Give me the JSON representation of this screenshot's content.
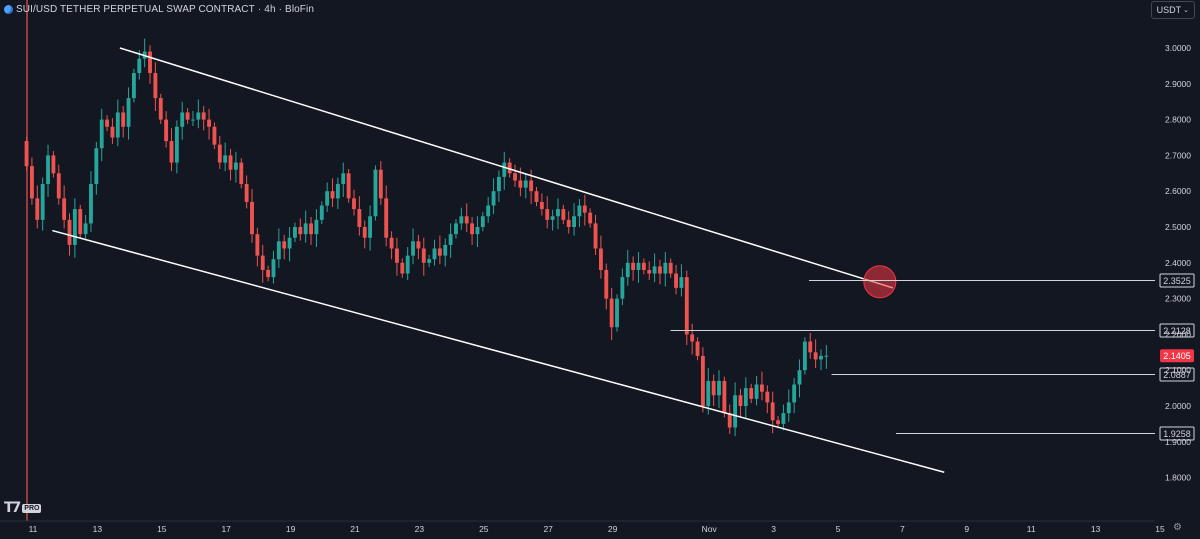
{
  "header": {
    "symbol": "SUI/USD TETHER PERPETUAL SWAP CONTRACT",
    "interval": "4h",
    "exchange": "BloFin",
    "separator": "·"
  },
  "currency_button": {
    "label": "USDT",
    "chevron": "⌄"
  },
  "logo": {
    "badge": "PRO"
  },
  "colors": {
    "background": "#131722",
    "up": "#26a69a",
    "down": "#ef5350",
    "channel": "#ffffff",
    "price_label_bg": "#f23645",
    "axis_text": "#d1d4dc"
  },
  "chart_data": {
    "type": "candlestick",
    "symbol": "SUI/USD TETHER PERPETUAL SWAP CONTRACT",
    "interval": "4h",
    "x_ticks": [
      "11",
      "13",
      "15",
      "17",
      "19",
      "21",
      "23",
      "25",
      "27",
      "29",
      "Nov",
      "3",
      "5",
      "7",
      "9",
      "11",
      "13",
      "15"
    ],
    "y_ticks": [
      "3.0000",
      "2.9000",
      "2.8000",
      "2.7000",
      "2.6000",
      "2.5000",
      "2.4000",
      "2.3000",
      "2.2000",
      "2.1000",
      "2.0000",
      "1.9000",
      "1.8000"
    ],
    "ylim": [
      1.75,
      3.08
    ],
    "xlim": [
      "Oct 11",
      "Nov 16"
    ],
    "current_price": 2.1405,
    "levels": [
      {
        "label": "2.3525",
        "value": 2.3525,
        "from_day": 35.1
      },
      {
        "label": "2.2128",
        "value": 2.2128,
        "from_day": 30.8
      },
      {
        "label": "2.0887",
        "value": 2.0887,
        "from_day": 35.8
      },
      {
        "label": "1.9258",
        "value": 1.9258,
        "from_day": 37.8
      }
    ],
    "channel": {
      "upper": [
        [
          13.7,
          3.0
        ],
        [
          37.7,
          2.33
        ]
      ],
      "lower": [
        [
          11.6,
          2.49
        ],
        [
          39.3,
          1.815
        ]
      ]
    },
    "breakout_marker": {
      "day": 37.3,
      "value": 2.347
    },
    "grid": false,
    "legend": "none",
    "series": [
      {
        "x_start_day": 10.8,
        "bar_days": 0.1667,
        "closes": [
          2.67,
          2.58,
          2.52,
          2.62,
          2.7,
          2.65,
          2.58,
          2.52,
          2.45,
          2.55,
          2.48,
          2.51,
          2.62,
          2.72,
          2.8,
          2.78,
          2.75,
          2.82,
          2.78,
          2.86,
          2.93,
          2.97,
          2.99,
          2.93,
          2.86,
          2.8,
          2.74,
          2.68,
          2.78,
          2.82,
          2.8,
          2.8,
          2.82,
          2.8,
          2.78,
          2.73,
          2.68,
          2.7,
          2.66,
          2.68,
          2.62,
          2.57,
          2.48,
          2.42,
          2.38,
          2.36,
          2.41,
          2.46,
          2.44,
          2.47,
          2.5,
          2.48,
          2.51,
          2.48,
          2.52,
          2.56,
          2.6,
          2.58,
          2.62,
          2.65,
          2.58,
          2.55,
          2.5,
          2.47,
          2.53,
          2.66,
          2.58,
          2.47,
          2.44,
          2.4,
          2.37,
          2.42,
          2.46,
          2.44,
          2.4,
          2.41,
          2.44,
          2.42,
          2.45,
          2.48,
          2.51,
          2.53,
          2.51,
          2.48,
          2.5,
          2.53,
          2.56,
          2.6,
          2.64,
          2.68,
          2.65,
          2.63,
          2.61,
          2.63,
          2.6,
          2.57,
          2.55,
          2.52,
          2.53,
          2.55,
          2.52,
          2.5,
          2.53,
          2.56,
          2.54,
          2.51,
          2.44,
          2.38,
          2.3,
          2.22,
          2.3,
          2.36,
          2.4,
          2.38,
          2.4,
          2.38,
          2.37,
          2.39,
          2.37,
          2.4,
          2.37,
          2.33,
          2.36,
          2.2,
          2.18,
          2.14,
          2.0,
          2.07,
          2.03,
          2.07,
          1.98,
          1.94,
          2.03,
          2.0,
          2.05,
          2.02,
          2.06,
          2.04,
          2.01,
          1.96,
          1.95,
          1.98,
          2.01,
          2.06,
          2.1,
          2.18,
          2.15,
          2.13,
          2.14,
          2.1405
        ]
      }
    ]
  }
}
